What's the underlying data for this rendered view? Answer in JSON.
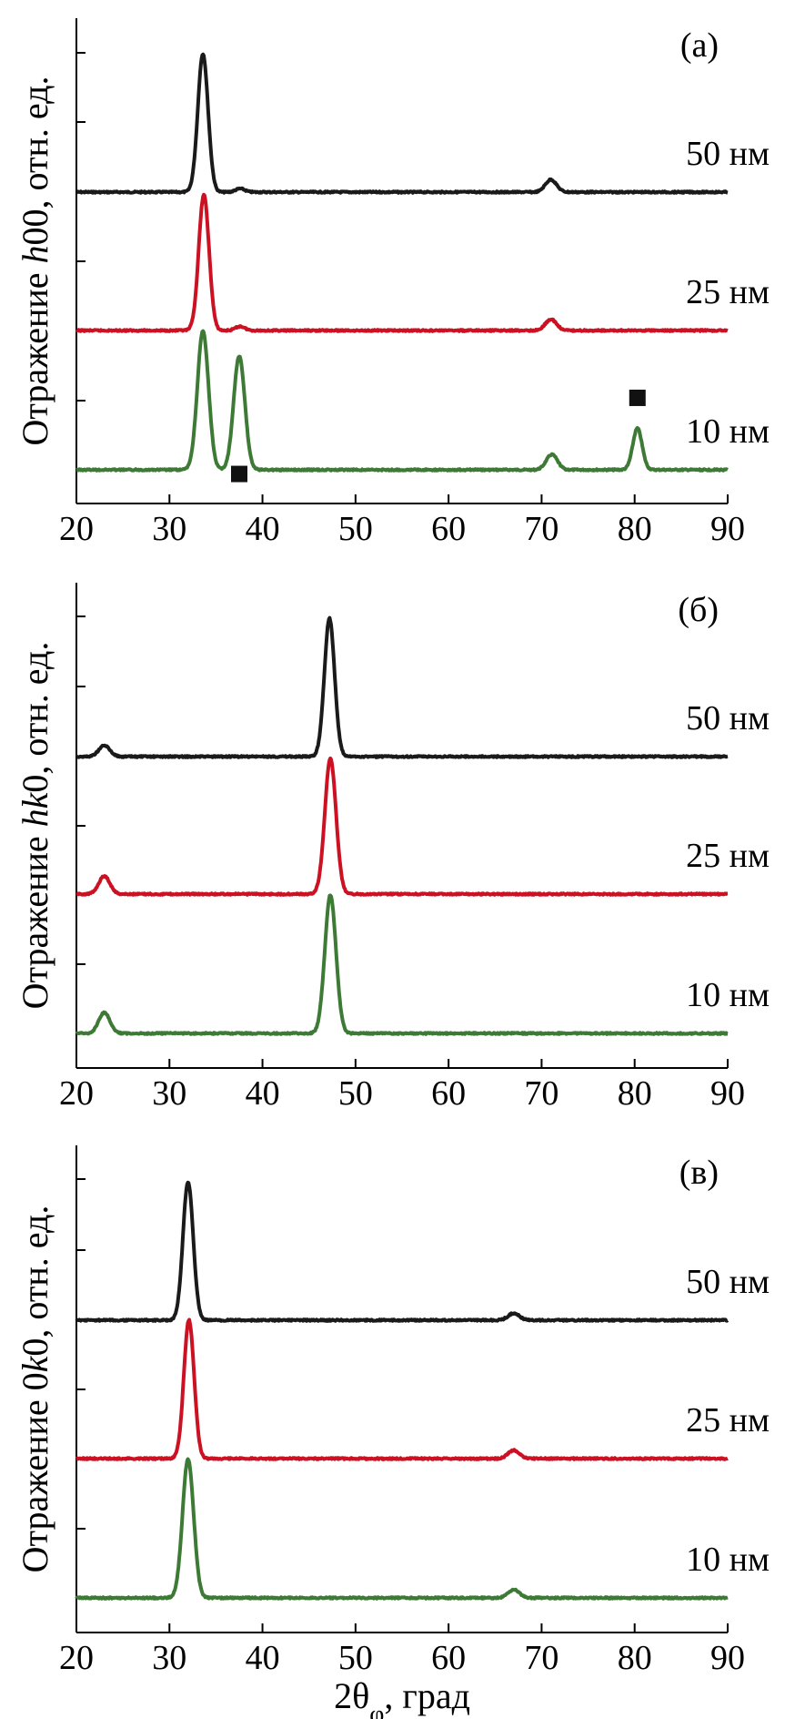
{
  "chart_data": [
    {
      "type": "line",
      "panel": "(a)",
      "ylabel_parts": [
        "Отражение ",
        "h",
        "00, отн. ед."
      ],
      "xlim": [
        20,
        90
      ],
      "xticks": [
        "20",
        "30",
        "40",
        "50",
        "60",
        "70",
        "80",
        "90"
      ],
      "grid": false,
      "series": [
        {
          "label": "50 нм",
          "color": "#1a1a1a",
          "peaks": [
            {
              "center": 33.6,
              "height": 1.0,
              "width": 0.55
            },
            {
              "center": 37.6,
              "height": 0.025,
              "width": 0.5
            },
            {
              "center": 71.0,
              "height": 0.09,
              "width": 0.6
            }
          ]
        },
        {
          "label": "25 нм",
          "color": "#cc1122",
          "peaks": [
            {
              "center": 33.7,
              "height": 0.98,
              "width": 0.55
            },
            {
              "center": 37.6,
              "height": 0.03,
              "width": 0.5
            },
            {
              "center": 71.0,
              "height": 0.08,
              "width": 0.6
            }
          ]
        },
        {
          "label": "10 нм",
          "color": "#3d7a35",
          "peaks": [
            {
              "center": 33.6,
              "height": 1.0,
              "width": 0.6
            },
            {
              "center": 37.5,
              "height": 0.82,
              "width": 0.6
            },
            {
              "center": 71.1,
              "height": 0.11,
              "width": 0.6
            },
            {
              "center": 80.3,
              "height": 0.3,
              "width": 0.5
            }
          ]
        }
      ],
      "markers": [
        {
          "shape": "square",
          "x": 37.5,
          "y": -0.03
        },
        {
          "shape": "square",
          "x": 80.3,
          "y": 0.52
        }
      ]
    },
    {
      "type": "line",
      "panel": "(б)",
      "ylabel_parts": [
        "Отражение ",
        "hk",
        "0, отн. ед."
      ],
      "xlim": [
        20,
        90
      ],
      "xticks": [
        "20",
        "30",
        "40",
        "50",
        "60",
        "70",
        "80",
        "90"
      ],
      "grid": false,
      "series": [
        {
          "label": "50 нм",
          "color": "#1a1a1a",
          "peaks": [
            {
              "center": 23.0,
              "height": 0.08,
              "width": 0.6
            },
            {
              "center": 47.2,
              "height": 1.0,
              "width": 0.55
            }
          ]
        },
        {
          "label": "25 нм",
          "color": "#cc1122",
          "peaks": [
            {
              "center": 23.0,
              "height": 0.13,
              "width": 0.6
            },
            {
              "center": 47.3,
              "height": 0.98,
              "width": 0.6
            }
          ]
        },
        {
          "label": "10 нм",
          "color": "#3d7a35",
          "peaks": [
            {
              "center": 23.0,
              "height": 0.15,
              "width": 0.6
            },
            {
              "center": 47.3,
              "height": 1.0,
              "width": 0.6
            }
          ]
        }
      ],
      "markers": []
    },
    {
      "type": "line",
      "panel": "(в)",
      "ylabel_parts": [
        "Отражение 0",
        "k",
        "0, отн. ед."
      ],
      "xlabel_parts": [
        "2θ",
        "φ",
        ", град"
      ],
      "xlim": [
        20,
        90
      ],
      "xticks": [
        "20",
        "30",
        "40",
        "50",
        "60",
        "70",
        "80",
        "90"
      ],
      "grid": false,
      "series": [
        {
          "label": "50 нм",
          "color": "#1a1a1a",
          "peaks": [
            {
              "center": 32.0,
              "height": 1.0,
              "width": 0.55
            },
            {
              "center": 67.0,
              "height": 0.05,
              "width": 0.6
            }
          ]
        },
        {
          "label": "25 нм",
          "color": "#cc1122",
          "peaks": [
            {
              "center": 32.1,
              "height": 1.0,
              "width": 0.55
            },
            {
              "center": 67.0,
              "height": 0.06,
              "width": 0.6
            }
          ]
        },
        {
          "label": "10 нм",
          "color": "#3d7a35",
          "peaks": [
            {
              "center": 32.0,
              "height": 1.0,
              "width": 0.6
            },
            {
              "center": 67.0,
              "height": 0.06,
              "width": 0.6
            }
          ]
        }
      ],
      "markers": []
    }
  ]
}
